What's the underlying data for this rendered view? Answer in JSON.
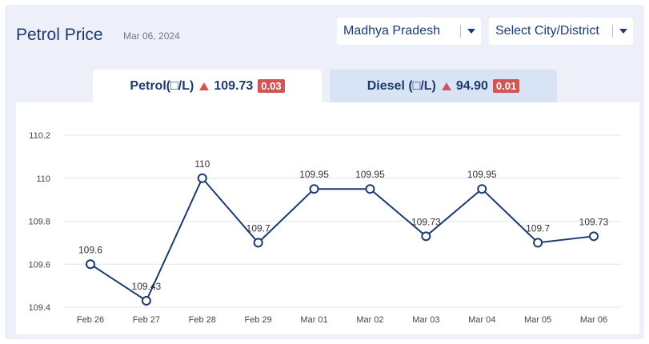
{
  "header": {
    "title": "Petrol Price",
    "date": "Mar 06, 2024"
  },
  "filters": {
    "state": "Madhya Pradesh",
    "city": "Select City/District"
  },
  "tabs": [
    {
      "name": "Petrol(□/L)",
      "price": "109.73",
      "change": "0.03"
    },
    {
      "name": "Diesel (□/L)",
      "price": "94.90",
      "change": "0.01"
    }
  ],
  "colors": {
    "accent": "#1d3a6e",
    "change_up": "#d05656",
    "panel_bg": "#edf0f8",
    "inactive_tab": "#d9e3f6"
  },
  "chart_data": {
    "type": "line",
    "x": [
      "Feb 26",
      "Feb 27",
      "Feb 28",
      "Feb 29",
      "Mar 01",
      "Mar 02",
      "Mar 03",
      "Mar 04",
      "Mar 05",
      "Mar 06"
    ],
    "series": [
      {
        "values": [
          109.6,
          109.43,
          110,
          109.7,
          109.95,
          109.95,
          109.73,
          109.95,
          109.7,
          109.73
        ]
      }
    ],
    "data_labels": [
      "109.6",
      "109.43",
      "110",
      "109.7",
      "109.95",
      "109.95",
      "109.73",
      "109.95",
      "109.7",
      "109.73"
    ],
    "y_ticks": [
      "110.2",
      "110",
      "109.8",
      "109.6",
      "109.4"
    ],
    "ylim": [
      109.4,
      110.2
    ],
    "grid": true,
    "line_color": "#1d3a6e"
  }
}
